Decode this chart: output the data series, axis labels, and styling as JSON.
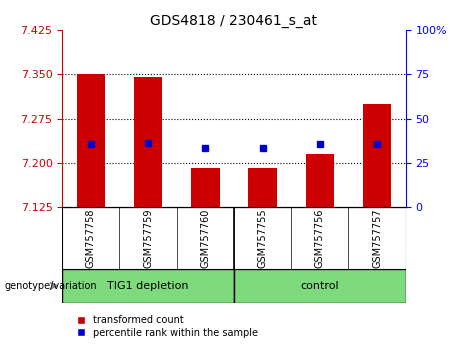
{
  "title": "GDS4818 / 230461_s_at",
  "samples": [
    "GSM757758",
    "GSM757759",
    "GSM757760",
    "GSM757755",
    "GSM757756",
    "GSM757757"
  ],
  "bar_values": [
    7.35,
    7.345,
    7.192,
    7.192,
    7.215,
    7.3
  ],
  "blue_marker_values": [
    7.232,
    7.233,
    7.226,
    7.226,
    7.232,
    7.232
  ],
  "ymin": 7.125,
  "ymax": 7.425,
  "yticks_left": [
    7.125,
    7.2,
    7.275,
    7.35,
    7.425
  ],
  "yticks_right_vals": [
    0,
    25,
    50,
    75,
    100
  ],
  "yticks_right_labels": [
    "0",
    "25",
    "50",
    "75",
    "100%"
  ],
  "bar_bottom": 7.125,
  "bar_color": "#cc0000",
  "marker_color": "#0000cc",
  "group1_label": "TIG1 depletion",
  "group2_label": "control",
  "group_color": "#7dda7d",
  "sample_box_color": "#c8c8c8",
  "group_label_prefix": "genotype/variation",
  "legend_bar_label": "transformed count",
  "legend_marker_label": "percentile rank within the sample",
  "dotted_line_values": [
    7.2,
    7.275,
    7.35
  ],
  "left_color": "#cc0000",
  "right_color": "#0000ff"
}
